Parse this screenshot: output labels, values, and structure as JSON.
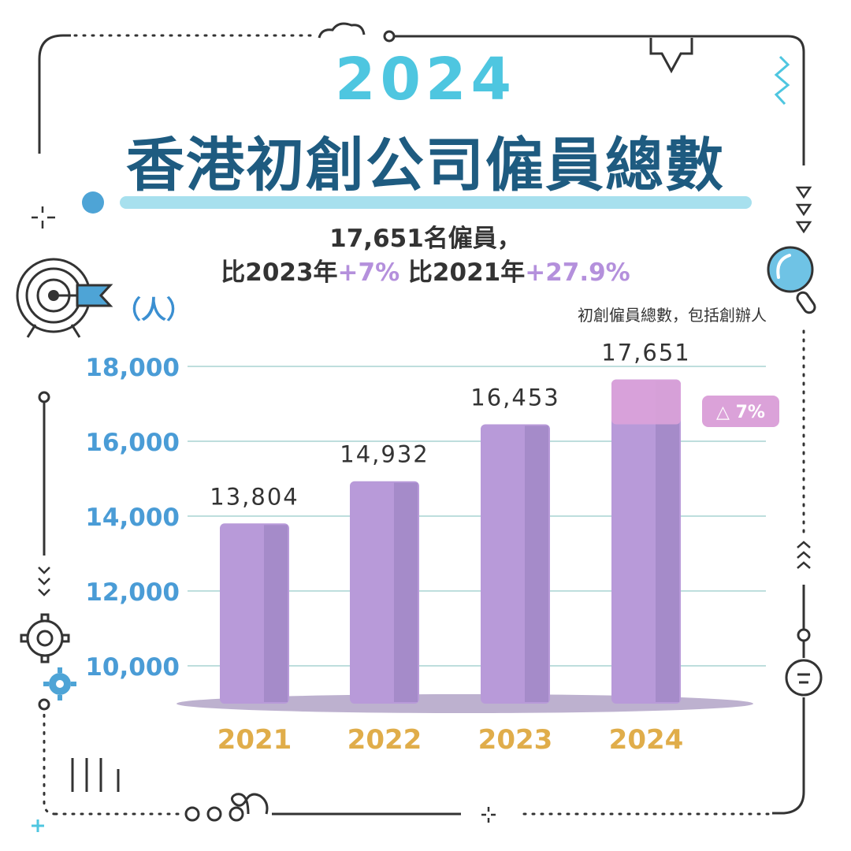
{
  "header": {
    "year": "2024",
    "title": "香港初創公司僱員總數",
    "headline_line1": "17,651名僱員，",
    "headline_line2_part1": "比2023年",
    "headline_line2_part2": "+7%",
    "headline_line2_part3": " 比2021年",
    "headline_line2_part4": "+27.9%"
  },
  "unit_label": "（人）",
  "note": "初創僱員總數，包括創辦人",
  "colors": {
    "bar": "#b89ad9",
    "bar_shade": "#a58bc9",
    "highlight": "#dba2d9",
    "axis_tick": "#4a9cd6",
    "year_label": "#e0ad4a",
    "title_dark": "#1e5b80",
    "title_light": "#4ec6e0",
    "gridline": "#a9d4d2"
  },
  "chart_data": {
    "type": "bar",
    "categories": [
      "2021",
      "2022",
      "2023",
      "2024"
    ],
    "values": [
      13804,
      14932,
      16453,
      17651
    ],
    "value_labels": [
      "13,804",
      "14,932",
      "16,453",
      "17,651"
    ],
    "yticks": [
      "10,000",
      "12,000",
      "14,000",
      "16,000",
      "18,000"
    ],
    "ytick_values": [
      10000,
      12000,
      14000,
      16000,
      18000
    ],
    "ylim": [
      9000,
      18000
    ],
    "grid": true,
    "annotation": "△ 7%",
    "ylabel": "（人）"
  }
}
